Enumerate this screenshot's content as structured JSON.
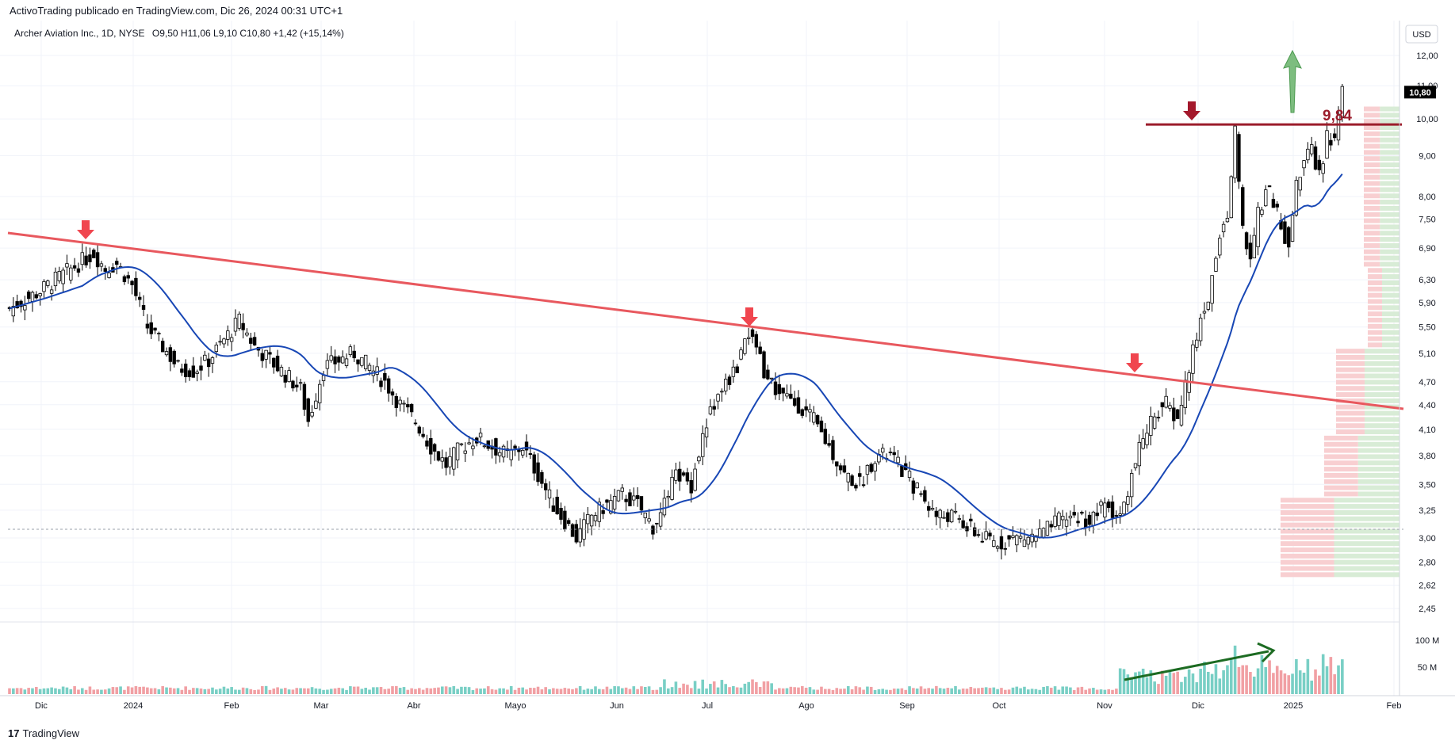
{
  "header": {
    "publisher": "ActivoTrading publicado en TradingView.com, Dic 26, 2024 00:31 UTC+1"
  },
  "footer": {
    "logo": "17",
    "brand": "TradingView"
  },
  "chart_data": {
    "type": "candlestick",
    "title": "Archer Aviation Inc., 1D, NYSE",
    "ohlc_label": "O9,50 H11,06 L9,10 C10,80 +1,42 (+15,14%)",
    "currency": "USD",
    "last_price_label": "10,80",
    "y_ticks": [
      "12,00",
      "11,00",
      "10,00",
      "9,00",
      "8,00",
      "7,50",
      "6,90",
      "6,30",
      "5,90",
      "5,50",
      "5,10",
      "4,70",
      "4,40",
      "4,10",
      "3,80",
      "3,50",
      "3,25",
      "3,00",
      "2,80",
      "2,62",
      "2,45"
    ],
    "volume_ticks": [
      "100 M",
      "50 M"
    ],
    "x_ticks": [
      "Dic",
      "2024",
      "Feb",
      "Mar",
      "Abr",
      "Mayo",
      "Jun",
      "Jul",
      "Ago",
      "Sep",
      "Oct",
      "Nov",
      "Dic",
      "2025",
      "Feb"
    ],
    "resistance_label": "9,84",
    "resistance_level": 9.84,
    "ylim": [
      2.4,
      12.6
    ],
    "y_scale": "log",
    "grid": true,
    "colors": {
      "up": "#ffffff",
      "down": "#000000",
      "wick": "#000000",
      "ma": "#1847b5",
      "trendline": "#e8585e",
      "resistance": "#9b1c2b",
      "arrow_red": "#f0464f",
      "arrow_green": "#6bb66e",
      "vol_up": "#79cfc5",
      "vol_down": "#f1a0a4",
      "profile_up": "#d8ecd6",
      "profile_down": "#f8cfd1",
      "volume_trend": "#1c6b22"
    },
    "closes_anchor": [
      [
        0,
        5.8
      ],
      [
        8,
        6.1
      ],
      [
        16,
        6.5
      ],
      [
        22,
        6.8
      ],
      [
        25,
        6.5
      ],
      [
        28,
        6.6
      ],
      [
        32,
        6.2
      ],
      [
        36,
        5.5
      ],
      [
        40,
        5.2
      ],
      [
        44,
        4.9
      ],
      [
        48,
        4.85
      ],
      [
        52,
        5.0
      ],
      [
        56,
        5.3
      ],
      [
        60,
        5.6
      ],
      [
        64,
        5.2
      ],
      [
        68,
        5.0
      ],
      [
        72,
        4.8
      ],
      [
        76,
        4.6
      ],
      [
        78,
        4.2
      ],
      [
        82,
        4.9
      ],
      [
        86,
        5.0
      ],
      [
        90,
        5.1
      ],
      [
        94,
        4.9
      ],
      [
        98,
        4.7
      ],
      [
        102,
        4.4
      ],
      [
        106,
        4.2
      ],
      [
        110,
        3.9
      ],
      [
        114,
        3.7
      ],
      [
        118,
        3.9
      ],
      [
        122,
        4.0
      ],
      [
        126,
        3.9
      ],
      [
        130,
        3.8
      ],
      [
        134,
        3.9
      ],
      [
        138,
        3.6
      ],
      [
        142,
        3.3
      ],
      [
        146,
        3.1
      ],
      [
        148,
        3.0
      ],
      [
        152,
        3.2
      ],
      [
        156,
        3.3
      ],
      [
        160,
        3.4
      ],
      [
        164,
        3.3
      ],
      [
        168,
        3.1
      ],
      [
        170,
        3.2
      ],
      [
        174,
        3.6
      ],
      [
        178,
        3.5
      ],
      [
        182,
        4.2
      ],
      [
        186,
        4.6
      ],
      [
        190,
        4.9
      ],
      [
        192,
        5.4
      ],
      [
        195,
        5.2
      ],
      [
        198,
        4.7
      ],
      [
        202,
        4.5
      ],
      [
        206,
        4.4
      ],
      [
        210,
        4.2
      ],
      [
        214,
        3.9
      ],
      [
        218,
        3.6
      ],
      [
        222,
        3.5
      ],
      [
        226,
        3.8
      ],
      [
        230,
        3.8
      ],
      [
        234,
        3.6
      ],
      [
        238,
        3.4
      ],
      [
        242,
        3.2
      ],
      [
        246,
        3.2
      ],
      [
        250,
        3.1
      ],
      [
        254,
        3.0
      ],
      [
        258,
        2.95
      ],
      [
        262,
        3.0
      ],
      [
        266,
        3.0
      ],
      [
        270,
        3.05
      ],
      [
        274,
        3.15
      ],
      [
        278,
        3.2
      ],
      [
        282,
        3.15
      ],
      [
        286,
        3.3
      ],
      [
        290,
        3.2
      ],
      [
        293,
        3.6
      ],
      [
        296,
        4.0
      ],
      [
        299,
        4.3
      ],
      [
        302,
        4.4
      ],
      [
        305,
        4.2
      ],
      [
        308,
        4.9
      ],
      [
        311,
        5.6
      ],
      [
        313,
        6.0
      ],
      [
        315,
        6.8
      ],
      [
        318,
        7.6
      ],
      [
        320,
        9.7
      ],
      [
        322,
        7.2
      ],
      [
        324,
        6.6
      ],
      [
        326,
        7.6
      ],
      [
        328,
        8.2
      ],
      [
        330,
        7.9
      ],
      [
        332,
        7.3
      ],
      [
        334,
        7.0
      ],
      [
        336,
        8.3
      ],
      [
        338,
        8.8
      ],
      [
        340,
        9.1
      ],
      [
        342,
        8.5
      ],
      [
        344,
        9.5
      ],
      [
        346,
        9.4
      ],
      [
        348,
        10.8
      ]
    ],
    "volume_description_levels": "low until Nov; high Nov-Dec"
  }
}
